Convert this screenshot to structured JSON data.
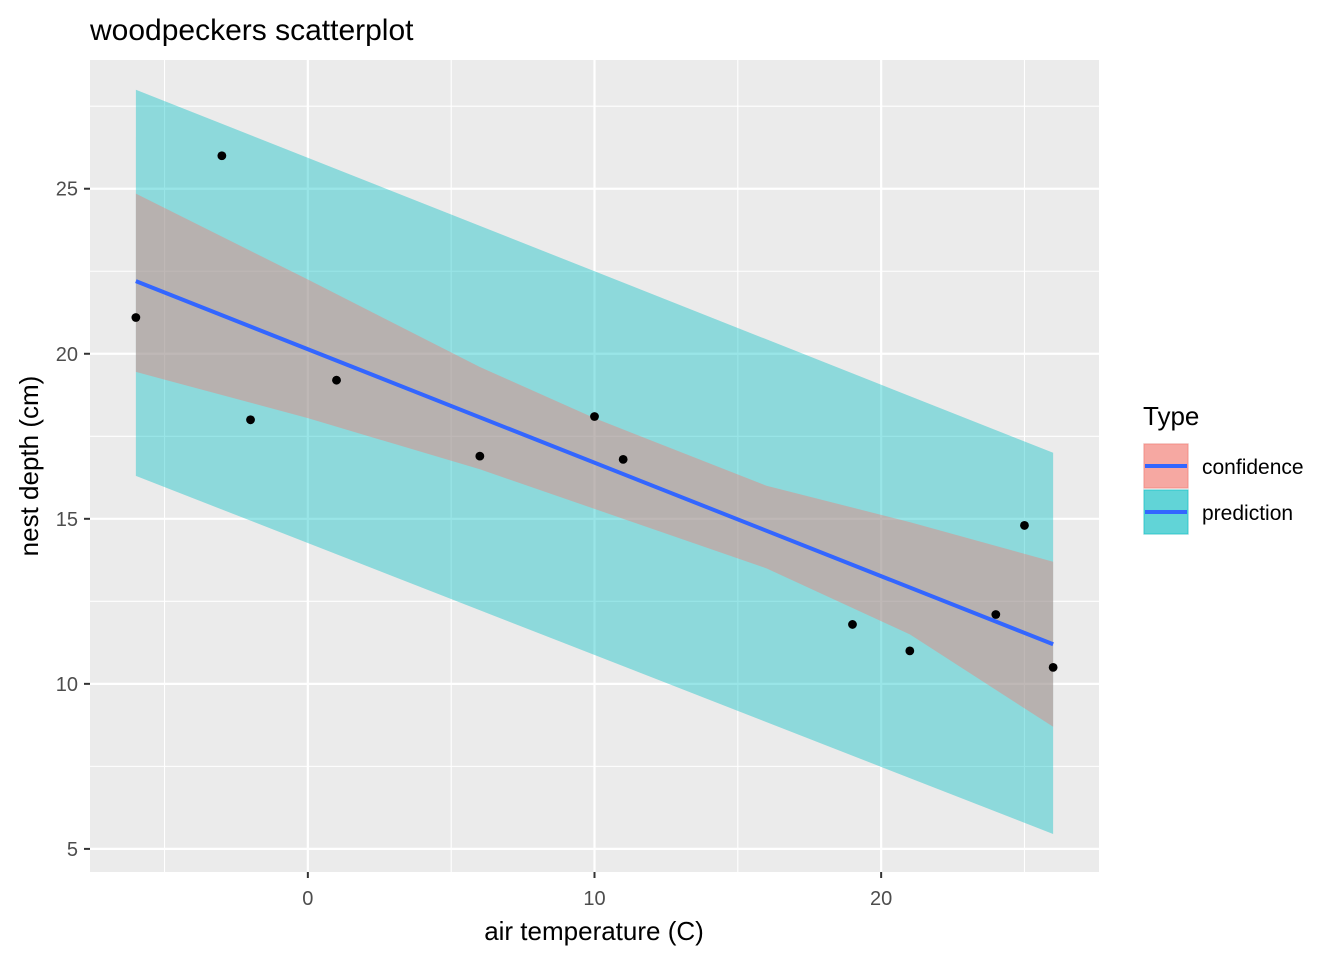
{
  "chart_data": {
    "type": "scatter",
    "title": "woodpeckers scatterplot",
    "xlabel": "air temperature (C)",
    "ylabel": "nest depth (cm)",
    "xlim": [
      -7.6,
      27.6
    ],
    "ylim": [
      4.3,
      28.9
    ],
    "x_ticks": [
      0,
      10,
      20
    ],
    "y_ticks": [
      5,
      10,
      15,
      20,
      25
    ],
    "grid": true,
    "legend_position": "right",
    "legend": {
      "title": "Type",
      "entries": [
        {
          "label": "confidence",
          "fill": "#F8766D",
          "line": "#3366FF"
        },
        {
          "label": "prediction",
          "fill": "#00BFC4",
          "line": "#3366FF"
        }
      ]
    },
    "points": [
      {
        "x": -6,
        "y": 21.1
      },
      {
        "x": -3,
        "y": 26.0
      },
      {
        "x": -2,
        "y": 18.0
      },
      {
        "x": 1,
        "y": 19.2
      },
      {
        "x": 6,
        "y": 16.9
      },
      {
        "x": 10,
        "y": 18.1
      },
      {
        "x": 11,
        "y": 16.8
      },
      {
        "x": 19,
        "y": 11.8
      },
      {
        "x": 21,
        "y": 11.0
      },
      {
        "x": 24,
        "y": 12.1
      },
      {
        "x": 25,
        "y": 14.8
      },
      {
        "x": 26,
        "y": 10.5
      }
    ],
    "fit_line": {
      "x": [
        -6,
        26
      ],
      "y": [
        22.2,
        11.2
      ]
    },
    "confidence_band": {
      "x": [
        -6,
        0,
        6,
        10,
        16,
        21,
        26
      ],
      "lower": [
        19.45,
        18.05,
        16.5,
        15.3,
        13.5,
        11.5,
        8.7
      ],
      "upper": [
        24.85,
        22.25,
        19.6,
        18.05,
        16.0,
        14.9,
        13.7
      ]
    },
    "prediction_band": {
      "x": [
        -6,
        26
      ],
      "lower": [
        16.3,
        5.45
      ],
      "upper": [
        28.0,
        17.0
      ]
    },
    "colors": {
      "panel_background": "#EBEBEB",
      "grid": "#FFFFFF",
      "points": "#000000",
      "fit_line": "#3366FF",
      "confidence_fill": "#F8766D",
      "prediction_fill": "#00BFC4"
    }
  }
}
